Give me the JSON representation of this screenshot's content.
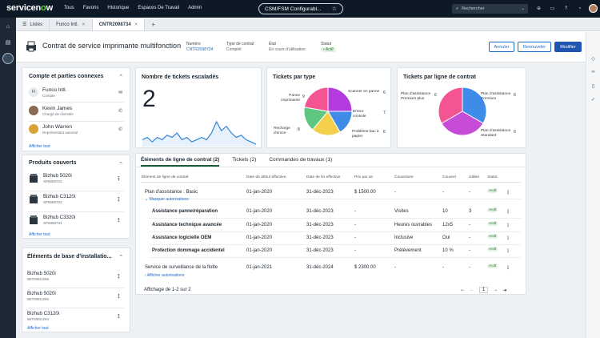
{
  "topbar": {
    "brand_main": "servicen",
    "brand_o": "o",
    "brand_end": "w",
    "nav": [
      "Tous",
      "Favoris",
      "Historique",
      "Espaces De Travail",
      "Admin"
    ],
    "context": "CSM/FSM Configurabl...",
    "search_placeholder": "Rechercher",
    "search_scope": "⌄"
  },
  "tabs": [
    {
      "label": "Listes"
    },
    {
      "label": "Funco Intl."
    },
    {
      "label": "CNTR2098734"
    },
    {
      "label": "+"
    }
  ],
  "record": {
    "title": "Contrat de service imprimante multifonction",
    "numero_label": "Numéro",
    "numero": "CNTR2098734",
    "type_label": "Type de contrat",
    "type": "Complet",
    "etat_label": "État",
    "etat": "En cours d'utilisation",
    "statut_label": "Statut",
    "statut": "• Actif",
    "btn_annuler": "Annuler",
    "btn_renouveler": "Renouveler",
    "btn_modifier": "Modifier",
    "btn_more": "⌄"
  },
  "accounts": {
    "title": "Compte et parties connexes",
    "people": [
      {
        "initials": "FI",
        "name": "Funco Intl.",
        "role": "Compte",
        "action": "✉"
      },
      {
        "initials": "",
        "name": "Kevin James",
        "role": "Chargé de clientèle",
        "action": "✆"
      },
      {
        "initials": "",
        "name": "John Warren",
        "role": "Représentant autorisé",
        "action": "✆"
      }
    ],
    "show_all": "Afficher tout"
  },
  "products": {
    "title": "Produits couverts",
    "items": [
      {
        "name": "Bizhub 5020i",
        "sn": "SP6969702"
      },
      {
        "name": "Bizhub C3120i",
        "sn": "SP6969703"
      },
      {
        "name": "Bizhub C3320i",
        "sn": "SP6969704"
      }
    ],
    "show_all": "Afficher tout"
  },
  "install_base": {
    "title": "Éléments de base d'installatio...",
    "items": [
      {
        "name": "Bizhub 5020i",
        "sn": "IBITM801296"
      },
      {
        "name": "Bizhub 5020i",
        "sn": "IBITM801295"
      },
      {
        "name": "Bizhub C3120i",
        "sn": "IBITM801294"
      }
    ],
    "show_all": "Afficher tout"
  },
  "escalated": {
    "title": "Nombre de tickets escaladés",
    "value": "2",
    "trend": [
      5,
      6,
      4,
      6,
      5,
      7,
      6,
      8,
      5,
      6,
      4,
      5,
      6,
      5,
      8,
      13,
      9,
      11,
      8,
      6,
      7,
      5,
      4,
      3
    ]
  },
  "chart_data": [
    {
      "type": "pie",
      "title": "Tickets par type",
      "categories": [
        "Panne imprimante",
        "Scanner en panne",
        "Erreur console",
        "Problème bac à papier",
        "Recharge d'encre"
      ],
      "values": [
        9,
        6,
        7,
        6,
        8
      ],
      "colors": [
        "#b33ce0",
        "#3f8be8",
        "#f4cf4a",
        "#5fc77f",
        "#f25591"
      ]
    },
    {
      "type": "pie",
      "title": "Tickets par ligne de contrat",
      "categories": [
        "Plan d'assistance Premium plus",
        "Plan d'assistance Premium",
        "Plan d'assistance Standard"
      ],
      "values": [
        6,
        6,
        6
      ],
      "colors": [
        "#3f8be8",
        "#c64bd6",
        "#f25591"
      ]
    }
  ],
  "lines": {
    "tabs": [
      "Éléments de ligne de contrat (2)",
      "Tickets (2)",
      "Commandes de travaux (1)"
    ],
    "headers": [
      "Élément de ligne de contrat",
      "Date de début effective",
      "Date de fin effective",
      "Prix par an",
      "Couverture",
      "Couvert",
      "Utilisé",
      "Statut"
    ],
    "rows": [
      {
        "name": "Plan d'assistance : Basic",
        "start": "01-jan-2020",
        "end": "31-déc-2023",
        "price": "$ 1500.00",
        "cov": "-",
        "covered": "-",
        "used": "-",
        "status": "Actif",
        "bold": false
      },
      {
        "name": "Assistance panne/réparation",
        "start": "01-jan-2020",
        "end": "31-déc-2023",
        "price": "-",
        "cov": "Visites",
        "covered": "10",
        "used": "3",
        "status": "Actif",
        "bold": true
      },
      {
        "name": "Assistance technique avancée",
        "start": "01-jan-2020",
        "end": "31-déc-2023",
        "price": "-",
        "cov": "Heures ouvrables",
        "covered": "12x5",
        "used": "-",
        "status": "Actif",
        "bold": true
      },
      {
        "name": "Assistance logicielle OEM",
        "start": "01-jan-2020",
        "end": "31-déc-2023",
        "price": "-",
        "cov": "Inclusive",
        "covered": "Oui",
        "used": "-",
        "status": "Actif",
        "bold": true
      },
      {
        "name": "Protection dommage accidentel",
        "start": "01-jan-2020",
        "end": "31-déc-2023",
        "price": "-",
        "cov": "Prélèvement",
        "covered": "10 %",
        "used": "-",
        "status": "Actif",
        "bold": true
      },
      {
        "name": "Service de surveillance de la flotte",
        "start": "01-jan-2021",
        "end": "31-déc-2024",
        "price": "$ 2300.00",
        "cov": "-",
        "covered": "-",
        "used": "-",
        "status": "Actif",
        "bold": false
      }
    ],
    "mask": "Masquer autorisations",
    "show": "Afficher autorisations",
    "footer": "Affichage de 1-2 sur 2",
    "page": "1"
  }
}
